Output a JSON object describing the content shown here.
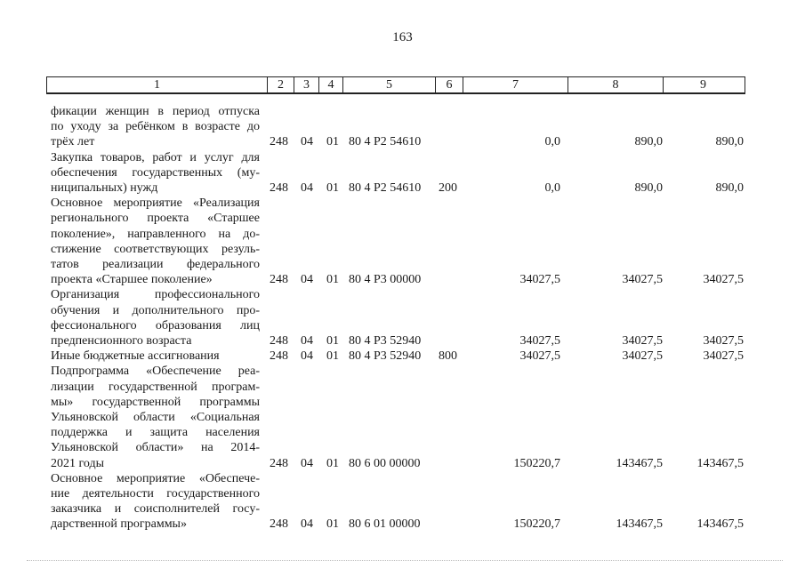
{
  "page_number": "163",
  "header": [
    "1",
    "2",
    "3",
    "4",
    "5",
    "6",
    "7",
    "8",
    "9"
  ],
  "rows": [
    {
      "lines": [
        "фикации женщин в период отпуска",
        "по уходу за ребёнком в возрасте до",
        "трёх лет"
      ],
      "c2": "248",
      "c3": "04",
      "c4": "01",
      "c5": "80 4 Р2 54610",
      "c6": "",
      "c7": "0,0",
      "c8": "890,0",
      "c9": "890,0"
    },
    {
      "lines": [
        "Закупка товаров, работ и услуг для",
        "обеспечения государственных (му-",
        "ниципальных) нужд"
      ],
      "c2": "248",
      "c3": "04",
      "c4": "01",
      "c5": "80 4 Р2 54610",
      "c6": "200",
      "c7": "0,0",
      "c8": "890,0",
      "c9": "890,0"
    },
    {
      "lines": [
        "Основное мероприятие «Реализация",
        "регионального проекта «Старшее",
        "поколение», направленного на до-",
        "стижение соответствующих резуль-",
        "татов реализации федерального",
        "проекта «Старшее поколение»"
      ],
      "c2": "248",
      "c3": "04",
      "c4": "01",
      "c5": "80 4 Р3 00000",
      "c6": "",
      "c7": "34027,5",
      "c8": "34027,5",
      "c9": "34027,5"
    },
    {
      "lines": [
        "Организация профессионального",
        "обучения и дополнительного про-",
        "фессионального образования лиц",
        "предпенсионного возраста"
      ],
      "c2": "248",
      "c3": "04",
      "c4": "01",
      "c5": "80 4 Р3 52940",
      "c6": "",
      "c7": "34027,5",
      "c8": "34027,5",
      "c9": "34027,5"
    },
    {
      "lines": [
        "Иные бюджетные ассигнования"
      ],
      "c2": "248",
      "c3": "04",
      "c4": "01",
      "c5": "80 4 Р3 52940",
      "c6": "800",
      "c7": "34027,5",
      "c8": "34027,5",
      "c9": "34027,5"
    },
    {
      "lines": [
        "Подпрограмма «Обеспечение реа-",
        "лизации государственной програм-",
        "мы» государственной программы",
        "Ульяновской области «Социальная",
        "поддержка и защита населения",
        "Ульяновской области» на 2014-",
        "2021 годы"
      ],
      "c2": "248",
      "c3": "04",
      "c4": "01",
      "c5": "80 6 00 00000",
      "c6": "",
      "c7": "150220,7",
      "c8": "143467,5",
      "c9": "143467,5"
    },
    {
      "lines": [
        "Основное мероприятие «Обеспече-",
        "ние деятельности государственного",
        "заказчика и соисполнителей госу-",
        "дарственной программы»"
      ],
      "c2": "248",
      "c3": "04",
      "c4": "01",
      "c5": "80 6 01 00000",
      "c6": "",
      "c7": "150220,7",
      "c8": "143467,5",
      "c9": "143467,5"
    }
  ]
}
